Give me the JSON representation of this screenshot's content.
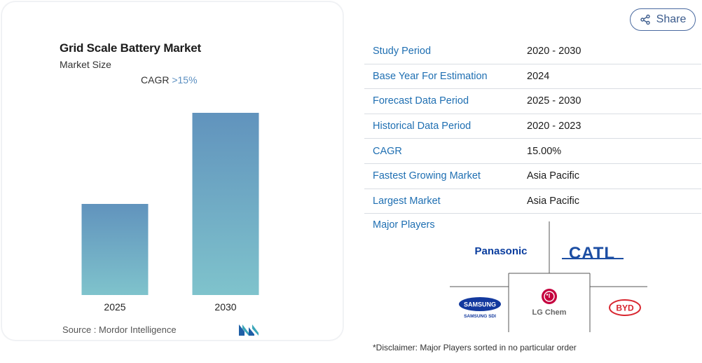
{
  "chart": {
    "title": "Grid Scale Battery Market",
    "subtitle": "Market Size",
    "cagr_label": "CAGR",
    "cagr_value": ">15%",
    "source_label": "Source :",
    "source_value": "Mordor Intelligence",
    "colors": {
      "bar_top": "#6193bd",
      "bar_bottom": "#7fc3cc"
    }
  },
  "chart_data": {
    "type": "bar",
    "categories": [
      "2025",
      "2030"
    ],
    "values": [
      0.5,
      1.0
    ],
    "title": "Grid Scale Battery Market",
    "xlabel": "",
    "ylabel": "",
    "grid": false
  },
  "share": {
    "label": "Share",
    "icon": "share-icon"
  },
  "details": {
    "rows": [
      {
        "key": "Study Period",
        "value": "2020 - 2030"
      },
      {
        "key": "Base Year For Estimation",
        "value": "2024"
      },
      {
        "key": "Forecast Data Period",
        "value": "2025 - 2030"
      },
      {
        "key": "Historical Data Period",
        "value": "2020 - 2023"
      },
      {
        "key": "CAGR",
        "value": "15.00%"
      },
      {
        "key": "Fastest Growing Market",
        "value": "Asia Pacific"
      },
      {
        "key": "Largest Market",
        "value": "Asia Pacific"
      }
    ]
  },
  "major_players": {
    "label": "Major Players",
    "logos": {
      "panasonic": "Panasonic",
      "catl": "CATL",
      "samsung": "SAMSUNG",
      "samsung_sub": "SAMSUNG SDI",
      "lg": "LG Chem",
      "byd": "BYD"
    },
    "disclaimer": "*Disclaimer: Major Players sorted in no particular order"
  }
}
